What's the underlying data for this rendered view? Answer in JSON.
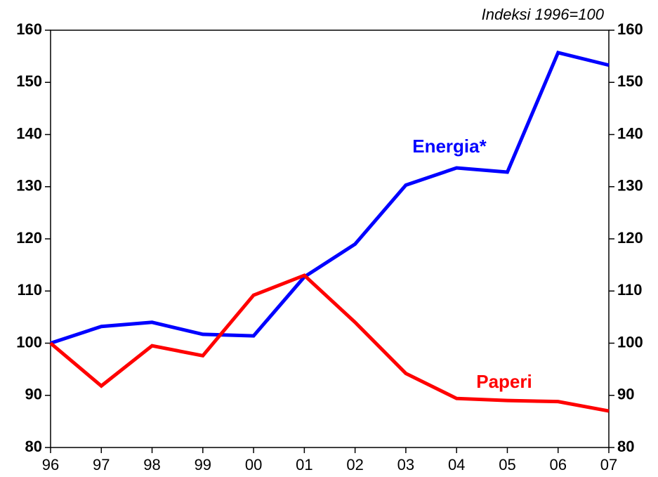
{
  "chart_data": {
    "type": "line",
    "annotation": "Indeksi 1996=100",
    "categories": [
      "96",
      "97",
      "98",
      "99",
      "00",
      "01",
      "02",
      "03",
      "04",
      "05",
      "06",
      "07"
    ],
    "series": [
      {
        "name": "Energia*",
        "color": "#0000ff",
        "values": [
          100,
          103.2,
          104,
          101.7,
          101.4,
          112.7,
          119,
          130.3,
          133.6,
          132.8,
          155.7,
          153.3
        ]
      },
      {
        "name": "Paperi",
        "color": "#ff0000",
        "values": [
          100,
          91.8,
          99.5,
          97.6,
          109.2,
          113,
          104,
          94.2,
          89.4,
          89,
          88.8,
          87
        ]
      }
    ],
    "ylim": [
      80,
      160
    ],
    "yticks": [
      80,
      90,
      100,
      110,
      120,
      130,
      140,
      150,
      160
    ],
    "y2lim": [
      80,
      160
    ],
    "y2ticks": [
      80,
      90,
      100,
      110,
      120,
      130,
      140,
      150,
      160
    ],
    "grid": false
  }
}
